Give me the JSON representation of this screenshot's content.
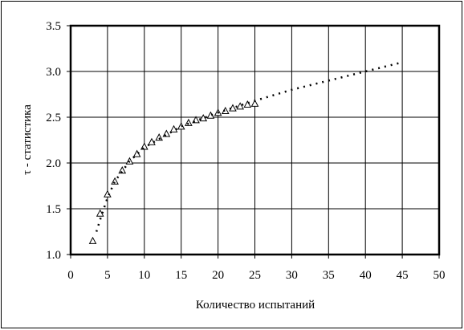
{
  "chart_data": {
    "type": "scatter",
    "x_label": "Количество испытаний",
    "y_label": "τ - статистика",
    "xlim": [
      0,
      50
    ],
    "xticks": [
      0,
      5,
      10,
      15,
      20,
      25,
      30,
      35,
      40,
      45,
      50
    ],
    "ylim": [
      1.0,
      3.5
    ],
    "yticks": [
      {
        "value": 1.0,
        "label": "1.0"
      },
      1.5,
      {
        "value": 2.0,
        "label": "2.0"
      },
      2.5,
      {
        "value": 3.0,
        "label": "3.0"
      },
      3.5
    ],
    "grid": true,
    "series": [
      {
        "style": "triangle",
        "color": "#000000",
        "x": [
          3,
          4,
          5,
          6,
          7,
          8,
          9,
          10,
          11,
          12,
          13,
          14,
          15,
          16,
          17,
          18,
          19,
          20,
          21,
          22,
          23,
          24,
          25
        ],
        "values": [
          1.15,
          1.45,
          1.66,
          1.8,
          1.92,
          2.02,
          2.1,
          2.18,
          2.23,
          2.28,
          2.32,
          2.37,
          2.4,
          2.44,
          2.47,
          2.49,
          2.52,
          2.55,
          2.57,
          2.6,
          2.62,
          2.64,
          2.65
        ]
      },
      {
        "style": "dotted",
        "color": "#000000",
        "x": [
          3.5,
          4,
          5,
          6,
          8,
          10,
          15,
          20,
          25,
          30,
          35,
          40,
          45
        ],
        "values": [
          1.25,
          1.38,
          1.62,
          1.8,
          2.02,
          2.17,
          2.4,
          2.55,
          2.68,
          2.8,
          2.9,
          3.0,
          3.1
        ]
      }
    ]
  }
}
